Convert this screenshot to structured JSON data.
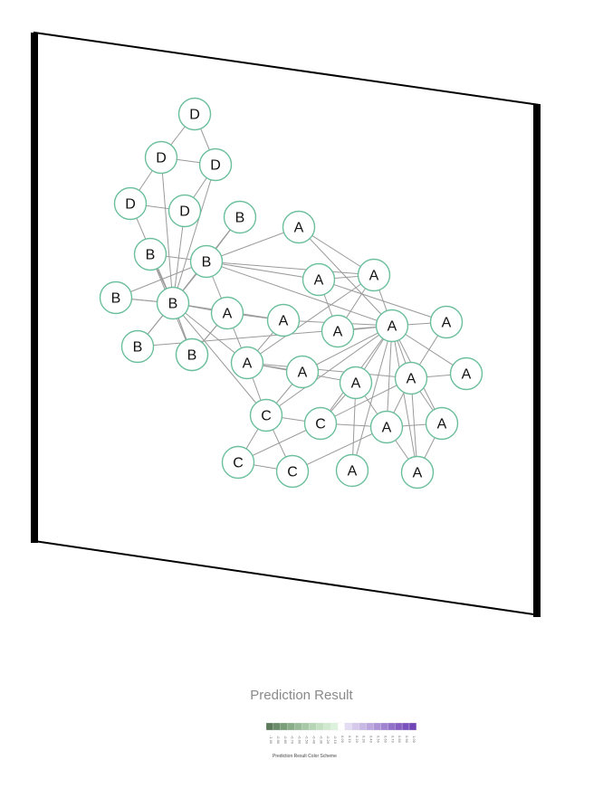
{
  "graph": {
    "nodes": [
      {
        "id": 0,
        "label": "D"
      },
      {
        "id": 1,
        "label": "D"
      },
      {
        "id": 2,
        "label": "D"
      },
      {
        "id": 3,
        "label": "D"
      },
      {
        "id": 4,
        "label": "D"
      },
      {
        "id": 5,
        "label": "B"
      },
      {
        "id": 6,
        "label": "A"
      },
      {
        "id": 7,
        "label": "B"
      },
      {
        "id": 8,
        "label": "B"
      },
      {
        "id": 9,
        "label": "B"
      },
      {
        "id": 10,
        "label": "A"
      },
      {
        "id": 11,
        "label": "A"
      },
      {
        "id": 12,
        "label": "B"
      },
      {
        "id": 13,
        "label": "B"
      },
      {
        "id": 14,
        "label": "A"
      },
      {
        "id": 15,
        "label": "A"
      },
      {
        "id": 16,
        "label": "A"
      },
      {
        "id": 17,
        "label": "A"
      },
      {
        "id": 18,
        "label": "A"
      },
      {
        "id": 19,
        "label": "B"
      },
      {
        "id": 20,
        "label": "B"
      },
      {
        "id": 21,
        "label": "A"
      },
      {
        "id": 22,
        "label": "A"
      },
      {
        "id": 23,
        "label": "A"
      },
      {
        "id": 24,
        "label": "A"
      },
      {
        "id": 25,
        "label": "A"
      },
      {
        "id": 26,
        "label": "C"
      },
      {
        "id": 27,
        "label": "C"
      },
      {
        "id": 28,
        "label": "A"
      },
      {
        "id": 29,
        "label": "A"
      },
      {
        "id": 30,
        "label": "C"
      },
      {
        "id": 31,
        "label": "C"
      },
      {
        "id": 32,
        "label": "A"
      },
      {
        "id": 33,
        "label": "A"
      }
    ],
    "edges": [
      [
        0,
        1
      ],
      [
        0,
        2
      ],
      [
        1,
        2
      ],
      [
        1,
        3
      ],
      [
        1,
        8
      ],
      [
        2,
        4
      ],
      [
        2,
        8
      ],
      [
        3,
        4
      ],
      [
        3,
        8
      ],
      [
        4,
        8
      ],
      [
        5,
        7
      ],
      [
        5,
        8
      ],
      [
        6,
        7
      ],
      [
        6,
        15
      ],
      [
        6,
        17
      ],
      [
        7,
        8
      ],
      [
        7,
        9
      ],
      [
        7,
        8
      ],
      [
        7,
        13
      ],
      [
        7,
        10
      ],
      [
        7,
        11
      ],
      [
        7,
        12
      ],
      [
        7,
        15
      ],
      [
        7,
        17
      ],
      [
        8,
        9
      ],
      [
        8,
        10
      ],
      [
        8,
        12
      ],
      [
        8,
        13
      ],
      [
        8,
        14
      ],
      [
        8,
        19
      ],
      [
        8,
        20
      ],
      [
        8,
        21
      ],
      [
        8,
        26
      ],
      [
        9,
        8
      ],
      [
        10,
        14
      ],
      [
        10,
        19
      ],
      [
        10,
        20
      ],
      [
        10,
        21
      ],
      [
        11,
        16
      ],
      [
        11,
        17
      ],
      [
        11,
        18
      ],
      [
        12,
        19
      ],
      [
        13,
        15
      ],
      [
        14,
        15
      ],
      [
        14,
        21
      ],
      [
        15,
        16
      ],
      [
        15,
        17
      ],
      [
        15,
        18
      ],
      [
        15,
        24
      ],
      [
        15,
        22
      ],
      [
        15,
        25
      ],
      [
        15,
        28
      ],
      [
        15,
        29
      ],
      [
        15,
        32
      ],
      [
        15,
        33
      ],
      [
        15,
        23
      ],
      [
        15,
        26
      ],
      [
        15,
        27
      ],
      [
        16,
        17
      ],
      [
        17,
        21
      ],
      [
        18,
        25
      ],
      [
        19,
        20
      ],
      [
        21,
        24
      ],
      [
        21,
        22
      ],
      [
        21,
        25
      ],
      [
        21,
        26
      ],
      [
        22,
        26
      ],
      [
        23,
        25
      ],
      [
        24,
        27
      ],
      [
        25,
        33
      ],
      [
        26,
        27
      ],
      [
        26,
        30
      ],
      [
        26,
        31
      ],
      [
        27,
        25
      ],
      [
        27,
        28
      ],
      [
        27,
        30
      ],
      [
        28,
        25
      ],
      [
        28,
        29
      ],
      [
        29,
        25
      ],
      [
        29,
        33
      ],
      [
        30,
        31
      ],
      [
        31,
        28
      ],
      [
        32,
        24
      ],
      [
        33,
        24
      ]
    ]
  },
  "result_title": "Prediction Result",
  "legend": {
    "caption": "Prediction Result Color Scheme",
    "ticks": [
      "-1.00",
      "-0.90",
      "-0.80",
      "-0.70",
      "-0.60",
      "-0.50",
      "-0.40",
      "-0.30",
      "-0.20",
      "-0.10",
      "0.00",
      "0.10",
      "0.20",
      "0.30",
      "0.40",
      "0.50",
      "0.60",
      "0.70",
      "0.80",
      "0.90",
      "1.00"
    ],
    "colors": [
      "#5a7a5a",
      "#6a8c6a",
      "#7a9e7a",
      "#89ad89",
      "#98bc98",
      "#a7c9a7",
      "#b5d5b5",
      "#c3e0c3",
      "#d0ead0",
      "#dcf2dc",
      "#ffffff",
      "#e4dcf3",
      "#d6caec",
      "#c8b8e5",
      "#bba6de",
      "#ad94d7",
      "#a083d0",
      "#9271c9",
      "#855fc2",
      "#7a52bd",
      "#6f45b6"
    ]
  }
}
